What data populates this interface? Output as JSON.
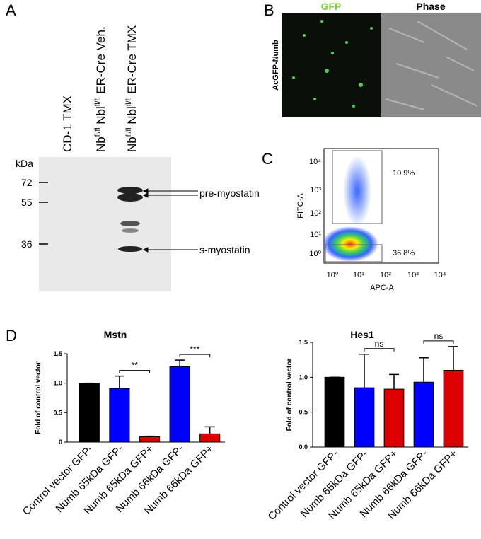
{
  "panel_labels": [
    "A",
    "B",
    "C",
    "D"
  ],
  "blot": {
    "lanes": [
      [
        "CD-1 TMX"
      ],
      [
        "Nb",
        "fl/fl",
        " Nbl",
        "fl/fl",
        " ER-Cre Veh."
      ],
      [
        "Nb",
        "fl/fl",
        " Nbl",
        "fl/fl",
        " ER-Cre TMX"
      ]
    ],
    "unit": "kDa",
    "markers": [
      "72",
      "55",
      "36"
    ],
    "bands": [
      "pre-myostatin",
      "s-myostatin"
    ]
  },
  "images": {
    "row_label": "AcGFP-Numb",
    "columns": [
      "GFP",
      "Phase"
    ]
  },
  "flow": {
    "y_label": "FITC-A",
    "x_label": "APC-A",
    "xticks": [
      "10⁰",
      "10¹",
      "10²",
      "10³",
      "10⁴"
    ],
    "yticks": [
      "10⁰",
      "10¹",
      "10²",
      "10³",
      "10⁴"
    ],
    "gates": [
      "10.9%",
      "36.8%"
    ]
  },
  "chart_data": [
    {
      "type": "bar",
      "title": "Mstn",
      "y_label": "Fold of control vector",
      "categories": [
        "Control vector GFP-",
        "Numb 65kDa GFP-",
        "Numb 65kDa GFP+",
        "Numb 66kDa GFP-",
        "Numb 66kDa GFP+"
      ],
      "values": [
        1.0,
        0.91,
        0.09,
        1.28,
        0.14
      ],
      "errors": [
        0,
        0.21,
        0.01,
        0.11,
        0.12
      ],
      "colors": [
        "#000000",
        "#0000ff",
        "#dd0000",
        "#0000ff",
        "#dd0000"
      ],
      "ylim": [
        0,
        1.5
      ],
      "yticks": [
        0,
        0.5,
        {
          "value": 1,
          "label": "1.0"
        },
        1.5
      ],
      "significance": [
        {
          "pair": [
            1,
            2
          ],
          "label": "**"
        },
        {
          "pair": [
            3,
            4
          ],
          "label": "***"
        }
      ]
    },
    {
      "type": "bar",
      "title": "Hes1",
      "y_label": "Fold of control vector",
      "categories": [
        "Control vector GFP-",
        "Numb 65kDa GFP-",
        "Numb 65kDa GFP+",
        "Numb 66kDa GFP-",
        "Numb 66kDa GFP+"
      ],
      "values": [
        1.0,
        0.85,
        0.83,
        0.93,
        1.1
      ],
      "errors": [
        0,
        0.48,
        0.21,
        0.35,
        0.34
      ],
      "colors": [
        "#000000",
        "#0000ff",
        "#dd0000",
        "#0000ff",
        "#dd0000"
      ],
      "ylim": [
        0,
        1.5
      ],
      "yticks": [
        {
          "value": 0,
          "label": "0.0"
        },
        0.5,
        {
          "value": 1,
          "label": "1.0"
        },
        1.5
      ],
      "significance": [
        {
          "pair": [
            1,
            2
          ],
          "label": "ns"
        },
        {
          "pair": [
            3,
            4
          ],
          "label": "ns"
        }
      ]
    }
  ]
}
